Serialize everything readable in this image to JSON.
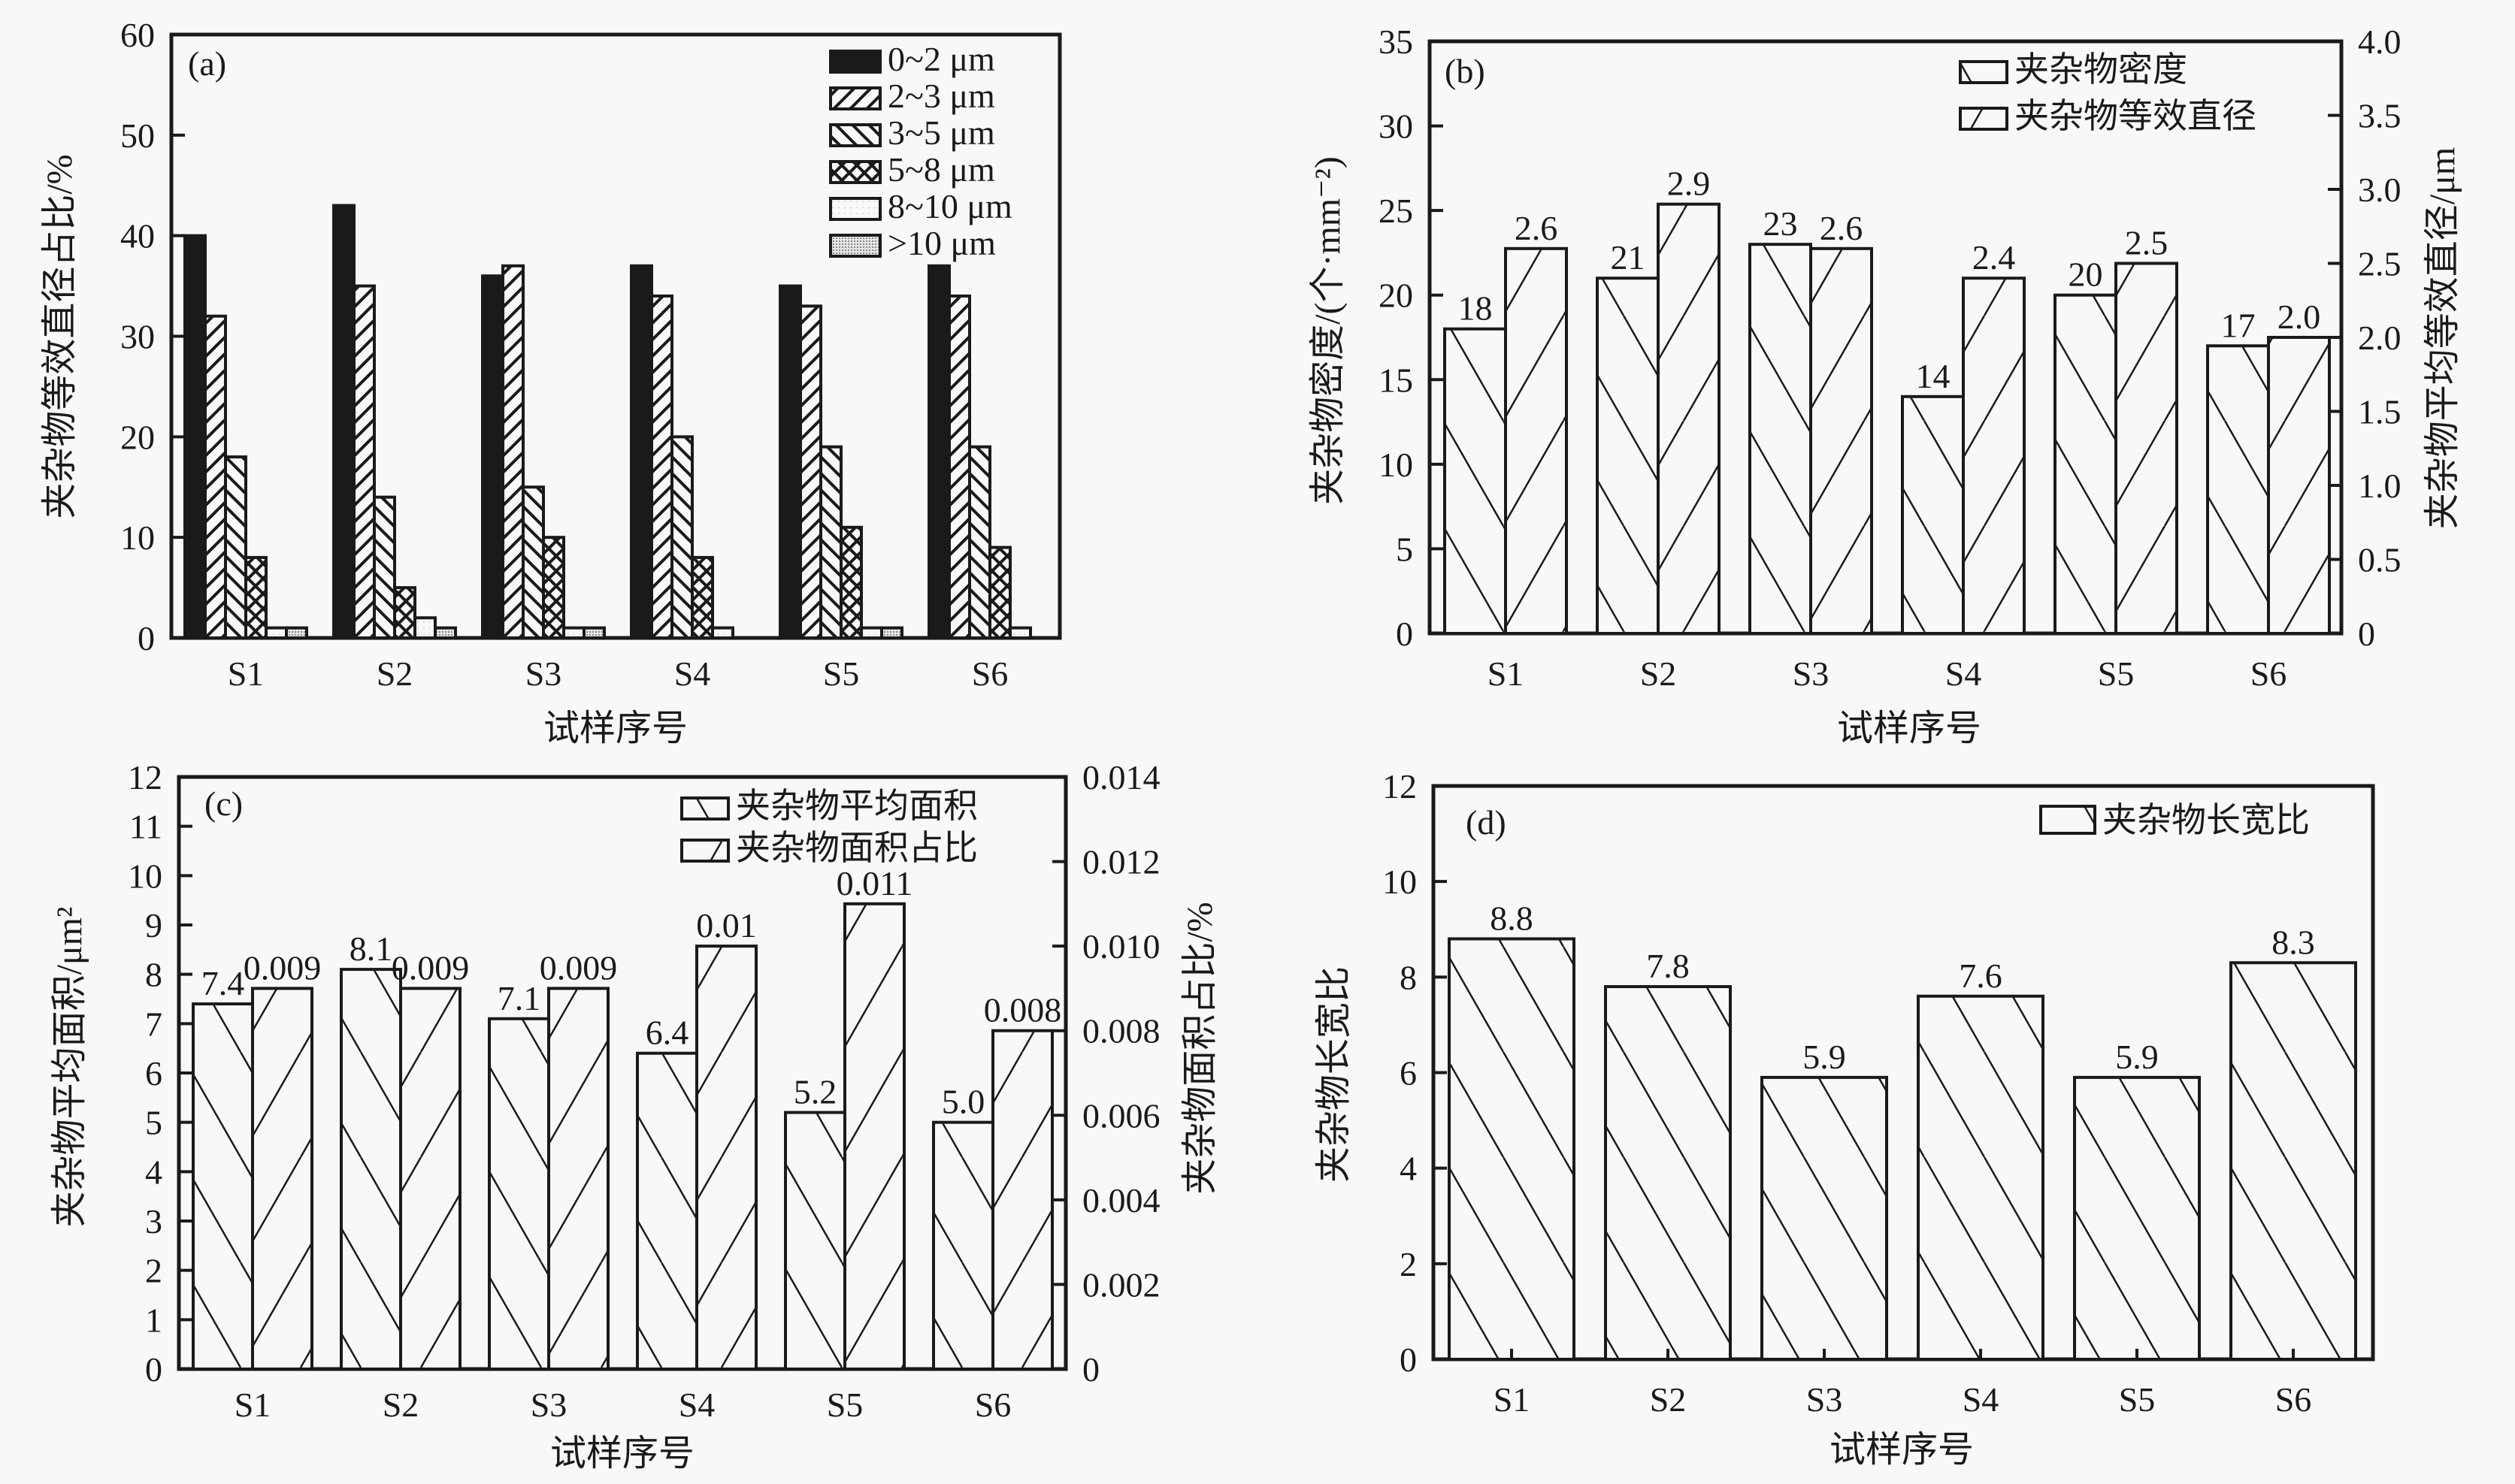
{
  "figure": {
    "background": "#f8f8f8",
    "ink": "#1a1a1a"
  },
  "chart_data": [
    {
      "id": "a",
      "type": "bar",
      "panel_label": "(a)",
      "title": "",
      "xlabel": "试样序号",
      "ylabel": "夹杂物等效直径占比/%",
      "categories": [
        "S1",
        "S2",
        "S3",
        "S4",
        "S5",
        "S6"
      ],
      "ylim": [
        0,
        60
      ],
      "yticks": [
        0,
        10,
        20,
        30,
        40,
        50,
        60
      ],
      "ytick_labels": [
        "0",
        "10",
        "20",
        "30",
        "40",
        "50",
        "60"
      ],
      "legend_position": "top-right",
      "grid": false,
      "series": [
        {
          "name": "0~2 μm",
          "pattern": "solid",
          "values": [
            40,
            43,
            36,
            37,
            35,
            37
          ]
        },
        {
          "name": "2~3 μm",
          "pattern": "forward-hatch",
          "values": [
            32,
            35,
            37,
            34,
            33,
            34
          ]
        },
        {
          "name": "3~5 μm",
          "pattern": "back-hatch",
          "values": [
            18,
            14,
            15,
            20,
            19,
            19
          ]
        },
        {
          "name": "5~8 μm",
          "pattern": "cross-hatch",
          "values": [
            8,
            5,
            10,
            8,
            11,
            9
          ]
        },
        {
          "name": "8~10 μm",
          "pattern": "light-dots",
          "values": [
            1,
            2,
            1,
            1,
            1,
            1
          ]
        },
        {
          "name": ">10 μm",
          "pattern": "dense-dots",
          "values": [
            1,
            1,
            1,
            0,
            1,
            0
          ]
        }
      ]
    },
    {
      "id": "b",
      "type": "bar",
      "panel_label": "(b)",
      "title": "",
      "xlabel": "试样序号",
      "ylabel": "夹杂物密度/(个·mm⁻²)",
      "ylabel_right": "夹杂物平均等效直径/μm",
      "categories": [
        "S1",
        "S2",
        "S3",
        "S4",
        "S5",
        "S6"
      ],
      "ylim": [
        0,
        35
      ],
      "yticks": [
        0,
        5,
        10,
        15,
        20,
        25,
        30,
        35
      ],
      "ytick_labels": [
        "0",
        "5",
        "10",
        "15",
        "20",
        "25",
        "30",
        "35"
      ],
      "ylim_right": [
        0,
        4.0
      ],
      "yticks_right": [
        0,
        0.5,
        1.0,
        1.5,
        2.0,
        2.5,
        3.0,
        3.5,
        4.0
      ],
      "ytick_labels_right": [
        "0",
        "0.5",
        "1.0",
        "1.5",
        "2.0",
        "2.5",
        "3.0",
        "3.5",
        "4.0"
      ],
      "legend_position": "top-right",
      "grid": false,
      "series": [
        {
          "name": "夹杂物密度",
          "axis": "left",
          "pattern": "back-hatch-wide",
          "values": [
            18,
            21,
            23,
            14,
            20,
            17
          ],
          "labels": [
            "18",
            "21",
            "23",
            "14",
            "20",
            "17"
          ]
        },
        {
          "name": "夹杂物等效直径",
          "axis": "right",
          "pattern": "forward-hatch-wide",
          "values": [
            2.6,
            2.9,
            2.6,
            2.4,
            2.5,
            2.0
          ],
          "labels": [
            "2.6",
            "2.9",
            "2.6",
            "2.4",
            "2.5",
            "2.0"
          ]
        }
      ]
    },
    {
      "id": "c",
      "type": "bar",
      "panel_label": "(c)",
      "title": "",
      "xlabel": "试样序号",
      "ylabel": "夹杂物平均面积/μm²",
      "ylabel_right": "夹杂物面积占比/%",
      "categories": [
        "S1",
        "S2",
        "S3",
        "S4",
        "S5",
        "S6"
      ],
      "ylim": [
        0,
        12
      ],
      "yticks": [
        0,
        1,
        2,
        3,
        4,
        5,
        6,
        7,
        8,
        9,
        10,
        11,
        12
      ],
      "ytick_labels": [
        "0",
        "1",
        "2",
        "3",
        "4",
        "5",
        "6",
        "7",
        "8",
        "9",
        "10",
        "11",
        "12"
      ],
      "ylim_right": [
        0,
        0.014
      ],
      "yticks_right": [
        0,
        0.002,
        0.004,
        0.006,
        0.008,
        0.01,
        0.012,
        0.014
      ],
      "ytick_labels_right": [
        "0",
        "0.002",
        "0.004",
        "0.006",
        "0.008",
        "0.010",
        "0.012",
        "0.014"
      ],
      "legend_position": "top-right",
      "grid": false,
      "series": [
        {
          "name": "夹杂物平均面积",
          "axis": "left",
          "pattern": "back-hatch-wide",
          "values": [
            7.4,
            8.1,
            7.1,
            6.4,
            5.2,
            5.0
          ],
          "labels": [
            "7.4",
            "8.1",
            "7.1",
            "6.4",
            "5.2",
            "5.0"
          ]
        },
        {
          "name": "夹杂物面积占比",
          "axis": "right",
          "pattern": "forward-hatch-wide",
          "values": [
            0.009,
            0.009,
            0.009,
            0.01,
            0.011,
            0.008
          ],
          "labels": [
            "0.009",
            "0.009",
            "0.009",
            "0.01",
            "0.011",
            "0.008"
          ]
        }
      ]
    },
    {
      "id": "d",
      "type": "bar",
      "panel_label": "(d)",
      "title": "",
      "xlabel": "试样序号",
      "ylabel": "夹杂物长宽比",
      "categories": [
        "S1",
        "S2",
        "S3",
        "S4",
        "S5",
        "S6"
      ],
      "ylim": [
        0,
        12
      ],
      "yticks": [
        0,
        2,
        4,
        6,
        8,
        10,
        12
      ],
      "ytick_labels": [
        "0",
        "2",
        "4",
        "6",
        "8",
        "10",
        "12"
      ],
      "legend_position": "top-right",
      "grid": false,
      "series": [
        {
          "name": "夹杂物长宽比",
          "axis": "left",
          "pattern": "back-hatch-wide",
          "values": [
            8.8,
            7.8,
            5.9,
            7.6,
            5.9,
            8.3
          ],
          "labels": [
            "8.8",
            "7.8",
            "5.9",
            "7.6",
            "5.9",
            "8.3"
          ]
        }
      ]
    }
  ]
}
